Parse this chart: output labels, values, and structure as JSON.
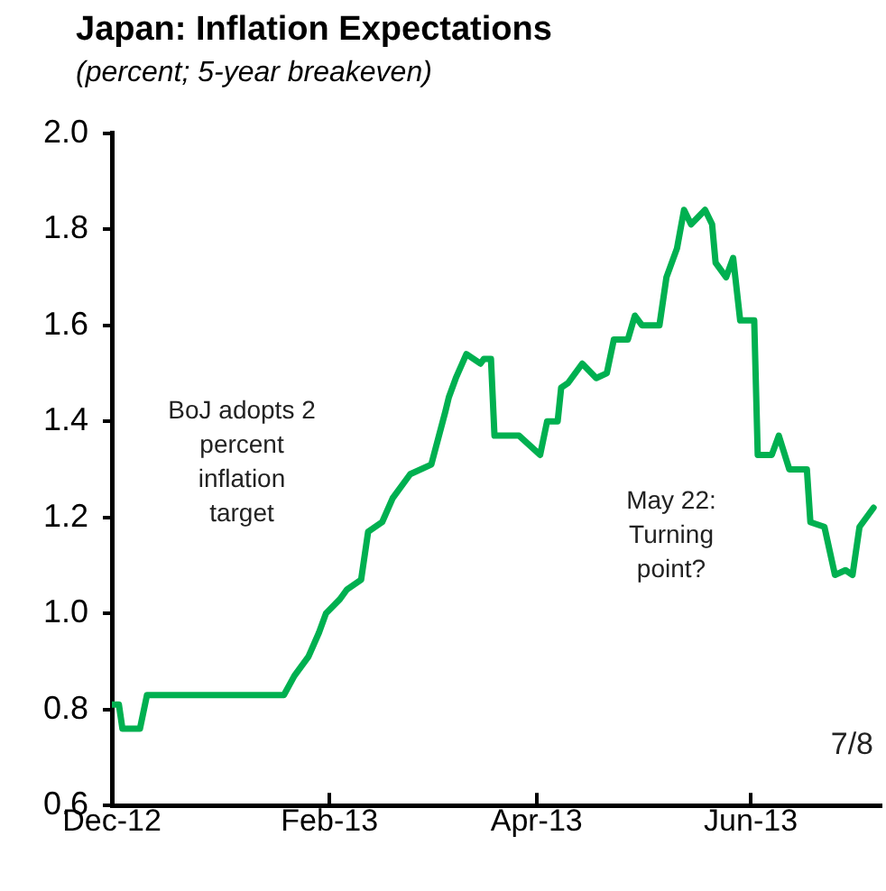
{
  "chart_data": {
    "type": "line",
    "title": "Japan: Inflation Expectations",
    "subtitle": "(percent; 5-year breakeven)",
    "x": [
      "2012-12-01",
      "2012-12-03",
      "2012-12-04",
      "2012-12-09",
      "2012-12-11",
      "2013-01-19",
      "2013-01-22",
      "2013-01-26",
      "2013-01-29",
      "2013-01-31",
      "2013-02-04",
      "2013-02-06",
      "2013-02-10",
      "2013-02-12",
      "2013-02-16",
      "2013-02-19",
      "2013-02-24",
      "2013-03-02",
      "2013-03-06",
      "2013-03-07",
      "2013-03-09",
      "2013-03-12",
      "2013-03-16",
      "2013-03-17",
      "2013-03-19",
      "2013-03-20",
      "2013-03-24",
      "2013-03-27",
      "2013-04-02",
      "2013-04-04",
      "2013-04-07",
      "2013-04-08",
      "2013-04-10",
      "2013-04-14",
      "2013-04-18",
      "2013-04-21",
      "2013-04-23",
      "2013-04-27",
      "2013-04-29",
      "2013-05-01",
      "2013-05-06",
      "2013-05-08",
      "2013-05-11",
      "2013-05-13",
      "2013-05-15",
      "2013-05-19",
      "2013-05-21",
      "2013-05-22",
      "2013-05-25",
      "2013-05-27",
      "2013-05-29",
      "2013-06-02",
      "2013-06-03",
      "2013-06-07",
      "2013-06-09",
      "2013-06-12",
      "2013-06-17",
      "2013-06-18",
      "2013-06-22",
      "2013-06-25",
      "2013-06-28",
      "2013-06-30",
      "2013-07-02",
      "2013-07-06"
    ],
    "series": [
      {
        "color": "#00b050",
        "values": [
          0.81,
          0.81,
          0.76,
          0.76,
          0.83,
          0.83,
          0.87,
          0.91,
          0.96,
          1.0,
          1.03,
          1.05,
          1.07,
          1.17,
          1.19,
          1.24,
          1.29,
          1.31,
          1.42,
          1.45,
          1.49,
          1.54,
          1.52,
          1.53,
          1.53,
          1.37,
          1.37,
          1.37,
          1.33,
          1.4,
          1.4,
          1.47,
          1.48,
          1.52,
          1.49,
          1.5,
          1.57,
          1.57,
          1.62,
          1.6,
          1.6,
          1.7,
          1.76,
          1.84,
          1.81,
          1.84,
          1.81,
          1.73,
          1.7,
          1.74,
          1.61,
          1.61,
          1.33,
          1.33,
          1.37,
          1.3,
          1.3,
          1.19,
          1.18,
          1.08,
          1.09,
          1.08,
          1.18,
          1.22
        ]
      }
    ],
    "xlim": [
      "2012-12-01",
      "2013-07-08"
    ],
    "xticks": [
      {
        "value": "2012-12-01",
        "label": "Dec-12"
      },
      {
        "value": "2013-02-01",
        "label": "Feb-13"
      },
      {
        "value": "2013-04-01",
        "label": "Apr-13"
      },
      {
        "value": "2013-06-01",
        "label": "Jun-13"
      }
    ],
    "ylim": [
      0.6,
      2.0
    ],
    "yticks": [
      0.6,
      0.8,
      {
        "value": 1,
        "label": "1.0"
      },
      1.2,
      1.4,
      1.6,
      1.8,
      {
        "value": 2,
        "label": "2.0"
      }
    ],
    "annotations": [
      "BoJ adopts 2 percent inflation target",
      "May 22: Turning point?",
      "7/8"
    ],
    "legend": false,
    "marker": "none",
    "line_style": "solid"
  }
}
